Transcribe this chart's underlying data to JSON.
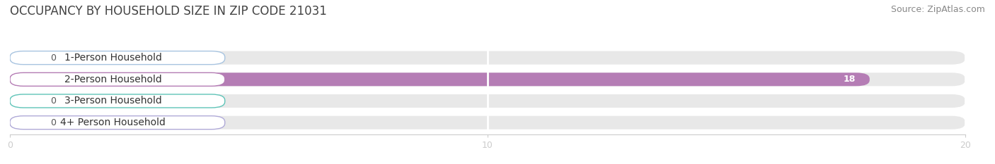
{
  "title": "OCCUPANCY BY HOUSEHOLD SIZE IN ZIP CODE 21031",
  "source": "Source: ZipAtlas.com",
  "categories": [
    "1-Person Household",
    "2-Person Household",
    "3-Person Household",
    "4+ Person Household"
  ],
  "values": [
    0,
    18,
    0,
    0
  ],
  "bar_colors": [
    "#a8c4e0",
    "#b57db5",
    "#5fc4b8",
    "#b0aad8"
  ],
  "bar_bg_color": "#e8e8e8",
  "xlim": [
    0,
    20
  ],
  "xticks": [
    0,
    10,
    20
  ],
  "background_color": "#ffffff",
  "title_fontsize": 12,
  "source_fontsize": 9,
  "label_fontsize": 10,
  "value_fontsize": 9
}
